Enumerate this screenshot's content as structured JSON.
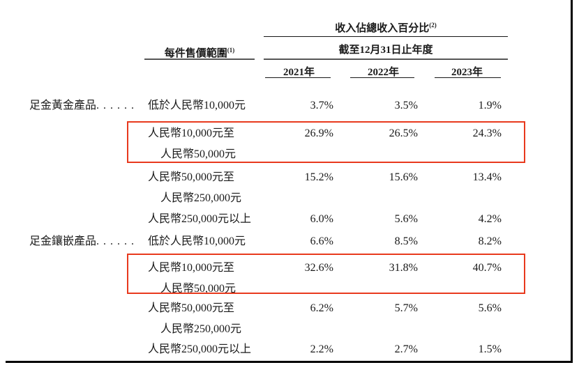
{
  "table": {
    "header": {
      "revenue_pct_label": "收入佔總收入百分比",
      "revenue_pct_note": "(2)",
      "price_range_label": "每件售價範圍",
      "price_range_note": "(1)",
      "period_label": "截至12月31日止年度",
      "years": [
        "2021年",
        "2022年",
        "2023年"
      ]
    },
    "rows": [
      {
        "category": "足金黃金產品",
        "dots": ". . . . . .",
        "range_line1": "低於人民幣10,000元",
        "range_line2": "",
        "v2021": "3.7%",
        "v2022": "3.5%",
        "v2023": "1.9%",
        "highlighted": false
      },
      {
        "category": "",
        "dots": "",
        "range_line1": "人民幣10,000元至",
        "range_line2": "人民幣50,000元",
        "v2021": "26.9%",
        "v2022": "26.5%",
        "v2023": "24.3%",
        "highlighted": true
      },
      {
        "category": "",
        "dots": "",
        "range_line1": "人民幣50,000元至",
        "range_line2": "人民幣250,000元",
        "v2021": "15.2%",
        "v2022": "15.6%",
        "v2023": "13.4%",
        "highlighted": false
      },
      {
        "category": "",
        "dots": "",
        "range_line1": "人民幣250,000元以上",
        "range_line2": "",
        "v2021": "6.0%",
        "v2022": "5.6%",
        "v2023": "4.2%",
        "highlighted": false
      },
      {
        "category": "足金鑲嵌產品",
        "dots": ". . . . . .",
        "range_line1": "低於人民幣10,000元",
        "range_line2": "",
        "v2021": "6.6%",
        "v2022": "8.5%",
        "v2023": "8.2%",
        "highlighted": false
      },
      {
        "category": "",
        "dots": "",
        "range_line1": "人民幣10,000元至",
        "range_line2": "人民幣50,000元",
        "v2021": "32.6%",
        "v2022": "31.8%",
        "v2023": "40.7%",
        "highlighted": true
      },
      {
        "category": "",
        "dots": "",
        "range_line1": "人民幣50,000元至",
        "range_line2": "人民幣250,000元",
        "v2021": "6.2%",
        "v2022": "5.7%",
        "v2023": "5.6%",
        "highlighted": false
      },
      {
        "category": "",
        "dots": "",
        "range_line1": "人民幣250,000元以上",
        "range_line2": "",
        "v2021": "2.2%",
        "v2022": "2.7%",
        "v2023": "1.5%",
        "highlighted": false
      }
    ],
    "highlight_color": "#e8391d"
  }
}
